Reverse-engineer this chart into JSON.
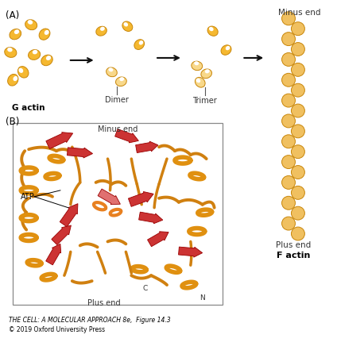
{
  "background_color": "#ffffff",
  "actin_color": "#F5B830",
  "actin_edge_color": "#C8860A",
  "arrow_color": "#111111",
  "label_A": "(A)",
  "label_B": "(B)",
  "g_actin_label": "G actin",
  "dimer_label": "Dimer",
  "trimer_label": "Trimer",
  "f_actin_label": "F actin",
  "minus_end_label": "Minus end",
  "plus_end_label": "Plus end",
  "atp_label": "ATP",
  "c_label": "C",
  "n_label": "N",
  "caption_line1": "THE CELL: A MOLECULAR APPROACH 8e,  Figure 14.3",
  "caption_line2": "© 2019 Oxford University Press",
  "filament_bead_color": "#F0C060",
  "filament_bead_edge": "#C8860A",
  "helix_color": "#E09010",
  "sheet_color": "#CC3333",
  "sheet_light": "#E07070",
  "connect_color": "#D08010",
  "box_edge": "#888888",
  "label_color": "#333333"
}
